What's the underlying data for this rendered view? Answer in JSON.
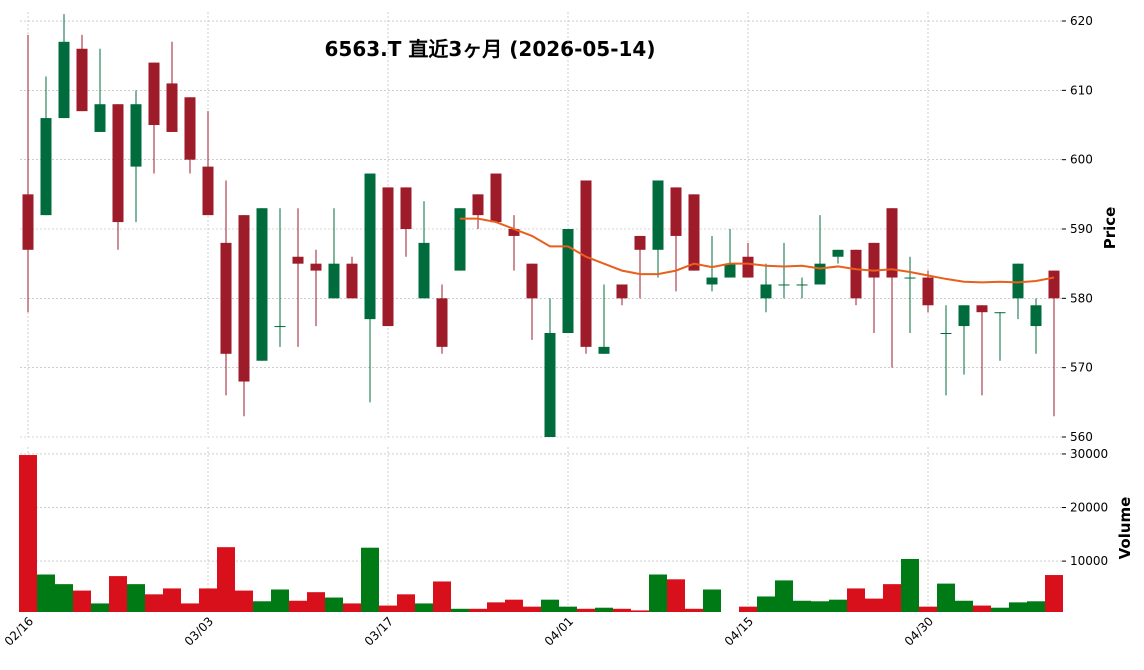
{
  "chart_data": {
    "type": "candlestick",
    "title": "6563.T  直近3ヶ月  (2026-05-14)",
    "categories": [
      "02/16",
      null,
      null,
      null,
      null,
      null,
      null,
      null,
      null,
      null,
      "03/03",
      null,
      null,
      null,
      null,
      null,
      null,
      null,
      null,
      null,
      "03/17",
      null,
      null,
      null,
      null,
      null,
      null,
      null,
      null,
      null,
      "04/01",
      null,
      null,
      null,
      null,
      null,
      null,
      null,
      null,
      null,
      "04/15",
      null,
      null,
      null,
      null,
      null,
      null,
      null,
      null,
      null,
      "04/30",
      null,
      null,
      null,
      null,
      null,
      null,
      null
    ],
    "open": [
      595,
      592,
      606,
      616,
      604,
      608,
      599,
      614,
      611,
      609,
      599,
      588,
      592,
      571,
      576,
      586,
      585,
      580,
      585,
      577,
      596,
      596,
      580,
      580,
      584,
      595,
      598,
      590,
      585,
      560,
      575,
      597,
      572,
      582,
      589,
      587,
      596,
      595,
      582,
      583,
      586,
      580,
      582,
      582,
      582,
      586,
      587,
      588,
      593,
      583,
      583,
      575,
      576,
      579,
      578,
      580,
      576,
      584
    ],
    "high": [
      618,
      612,
      621,
      618,
      616,
      608,
      610,
      614,
      617,
      609,
      607,
      597,
      592,
      593,
      593,
      593,
      587,
      593,
      586,
      598,
      596,
      596,
      594,
      582,
      593,
      595,
      598,
      592,
      585,
      580,
      590,
      597,
      582,
      582,
      589,
      597,
      596,
      595,
      589,
      590,
      588,
      585,
      588,
      583,
      592,
      587,
      587,
      588,
      593,
      586,
      584,
      579,
      579,
      579,
      578,
      585,
      580,
      584
    ],
    "low": [
      578,
      592,
      606,
      607,
      604,
      587,
      591,
      598,
      604,
      598,
      592,
      566,
      563,
      571,
      573,
      573,
      576,
      580,
      580,
      565,
      576,
      586,
      580,
      572,
      584,
      590,
      591,
      584,
      574,
      560,
      575,
      572,
      572,
      579,
      580,
      583,
      581,
      584,
      581,
      583,
      583,
      578,
      580,
      580,
      582,
      585,
      579,
      575,
      570,
      575,
      578,
      566,
      569,
      566,
      571,
      577,
      572,
      563
    ],
    "close": [
      587,
      606,
      617,
      607,
      608,
      591,
      608,
      605,
      604,
      600,
      592,
      572,
      568,
      593,
      576,
      585,
      584,
      585,
      580,
      598,
      576,
      590,
      588,
      573,
      593,
      592,
      591,
      589,
      580,
      575,
      590,
      573,
      573,
      580,
      587,
      597,
      589,
      584,
      583,
      585,
      583,
      582,
      582,
      582,
      585,
      587,
      580,
      583,
      583,
      583,
      579,
      575,
      579,
      578,
      578,
      585,
      579,
      580
    ],
    "up_color": "#006b3c",
    "down_color": "#9e1b2a",
    "ma": {
      "color": "#e8601c",
      "values": [
        null,
        null,
        null,
        null,
        null,
        null,
        null,
        null,
        null,
        null,
        null,
        null,
        null,
        null,
        null,
        null,
        null,
        null,
        null,
        null,
        null,
        null,
        null,
        null,
        591.5,
        591.5,
        591,
        590,
        589,
        587.5,
        587.5,
        586,
        585,
        584,
        583.5,
        583.5,
        584,
        585,
        584.5,
        585,
        585,
        584.7,
        584.6,
        584.7,
        584.3,
        584.6,
        584.2,
        584,
        584.2,
        583.8,
        583.3,
        582.8,
        582.4,
        582.3,
        582.4,
        582.3,
        582.5,
        583
      ]
    },
    "ylim": [
      560,
      621.3
    ],
    "yticks": [
      560,
      570,
      580,
      590,
      600,
      610,
      620
    ],
    "ylabel": "Price",
    "grid": true,
    "volume": {
      "values": [
        29800,
        7500,
        5700,
        4500,
        2100,
        7200,
        5700,
        3800,
        4900,
        2100,
        4900,
        12600,
        4500,
        2500,
        4700,
        2600,
        4200,
        3200,
        2100,
        12500,
        1700,
        3800,
        2100,
        6200,
        1100,
        1100,
        2300,
        2800,
        1500,
        2800,
        1500,
        1100,
        1300,
        1100,
        800,
        7500,
        6600,
        1100,
        4700,
        500,
        1500,
        3400,
        6400,
        2600,
        2500,
        2800,
        4900,
        3000,
        5700,
        10400,
        1500,
        5800,
        2600,
        1700,
        1300,
        2300,
        2500,
        7400
      ],
      "ylim": [
        500,
        31300
      ],
      "yticks": [
        10000,
        20000,
        30000
      ],
      "ylabel": "Volume",
      "up_color": "#007a14",
      "down_color": "#d7101c"
    }
  }
}
